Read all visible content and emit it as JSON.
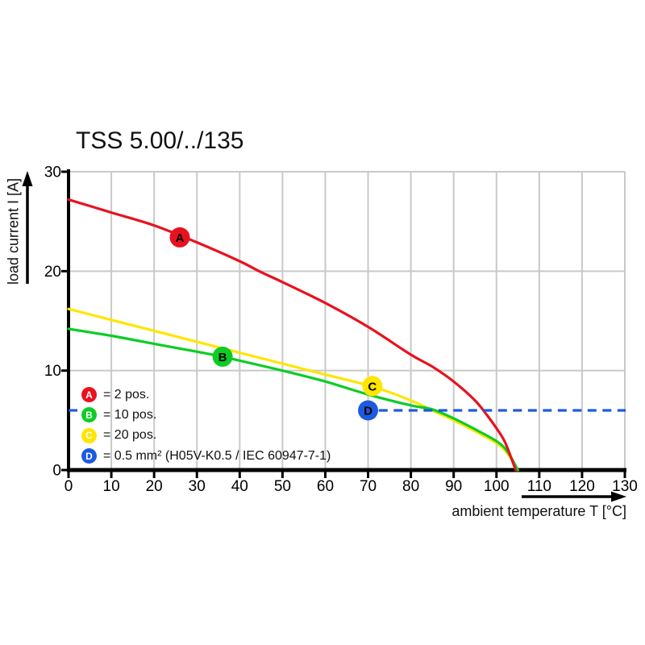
{
  "title": "TSS 5.00/../135",
  "chart_data": {
    "type": "line",
    "title": "TSS 5.00/../135",
    "xlabel": "ambient temperature T [°C]",
    "ylabel": "load current I [A]",
    "xlim": [
      0,
      130
    ],
    "ylim": [
      0,
      30
    ],
    "x_ticks": [
      0,
      10,
      20,
      30,
      40,
      50,
      60,
      70,
      80,
      90,
      100,
      110,
      120,
      130
    ],
    "y_ticks": [
      0,
      10,
      20,
      30
    ],
    "grid": true,
    "grid_color": "#c9c9c9",
    "axis_color": "#000000",
    "background": "#ffffff",
    "series": [
      {
        "id": "C",
        "name": "20 pos.",
        "color": "#ffe500",
        "style": "solid",
        "marker": {
          "x": 71,
          "y": 8.45
        },
        "points": [
          [
            0,
            16.2
          ],
          [
            10,
            15.1
          ],
          [
            20,
            14.0
          ],
          [
            30,
            12.9
          ],
          [
            40,
            11.8
          ],
          [
            50,
            10.7
          ],
          [
            60,
            9.6
          ],
          [
            71,
            8.4
          ],
          [
            80,
            7.0
          ],
          [
            85,
            6.0
          ],
          [
            90,
            5.0
          ],
          [
            95,
            3.9
          ],
          [
            100,
            2.7
          ],
          [
            102.5,
            1.7
          ],
          [
            105,
            0
          ]
        ]
      },
      {
        "id": "B",
        "name": "10 pos.",
        "color": "#0ccd24",
        "style": "solid",
        "marker": {
          "x": 36,
          "y": 11.4
        },
        "points": [
          [
            0,
            14.2
          ],
          [
            10,
            13.5
          ],
          [
            20,
            12.7
          ],
          [
            30,
            11.9
          ],
          [
            36,
            11.4
          ],
          [
            40,
            11.0
          ],
          [
            50,
            10.0
          ],
          [
            60,
            8.9
          ],
          [
            70,
            7.6
          ],
          [
            80,
            6.5
          ],
          [
            85,
            6.1
          ],
          [
            90,
            5.2
          ],
          [
            95,
            4.1
          ],
          [
            100,
            2.9
          ],
          [
            102.5,
            1.9
          ],
          [
            105,
            0
          ]
        ]
      },
      {
        "id": "A",
        "name": "2 pos.",
        "color": "#e8121f",
        "style": "solid",
        "marker": {
          "x": 26,
          "y": 23.4
        },
        "points": [
          [
            0,
            27.2
          ],
          [
            10,
            25.9
          ],
          [
            20,
            24.6
          ],
          [
            30,
            22.9
          ],
          [
            40,
            21.0
          ],
          [
            45,
            19.9
          ],
          [
            50,
            18.9
          ],
          [
            60,
            16.8
          ],
          [
            70,
            14.4
          ],
          [
            80,
            11.6
          ],
          [
            85,
            10.4
          ],
          [
            90,
            8.9
          ],
          [
            95,
            7.0
          ],
          [
            98,
            5.4
          ],
          [
            100,
            4.2
          ],
          [
            102,
            2.8
          ],
          [
            104.5,
            0
          ]
        ]
      },
      {
        "id": "D",
        "name": "0.5 mm² (H05V-K0.5 / IEC 60947-7-1)",
        "color": "#1e5ae0",
        "style": "dashed",
        "y": 6,
        "marker": {
          "x": 70,
          "y": 6
        },
        "segments": [
          [
            0,
            2.1
          ],
          [
            72.5,
            130.2
          ]
        ]
      }
    ],
    "legend": [
      {
        "id": "A",
        "color": "#e8121f",
        "label": "= 2 pos."
      },
      {
        "id": "B",
        "color": "#0ccd24",
        "label": "= 10 pos."
      },
      {
        "id": "C",
        "color": "#ffe500",
        "label": "= 20 pos."
      },
      {
        "id": "D",
        "color": "#1e5ae0",
        "label": "= 0.5 mm² (H05V-K0.5 / IEC 60947-7-1)"
      }
    ],
    "legend_position": "inside-bottom-left"
  }
}
